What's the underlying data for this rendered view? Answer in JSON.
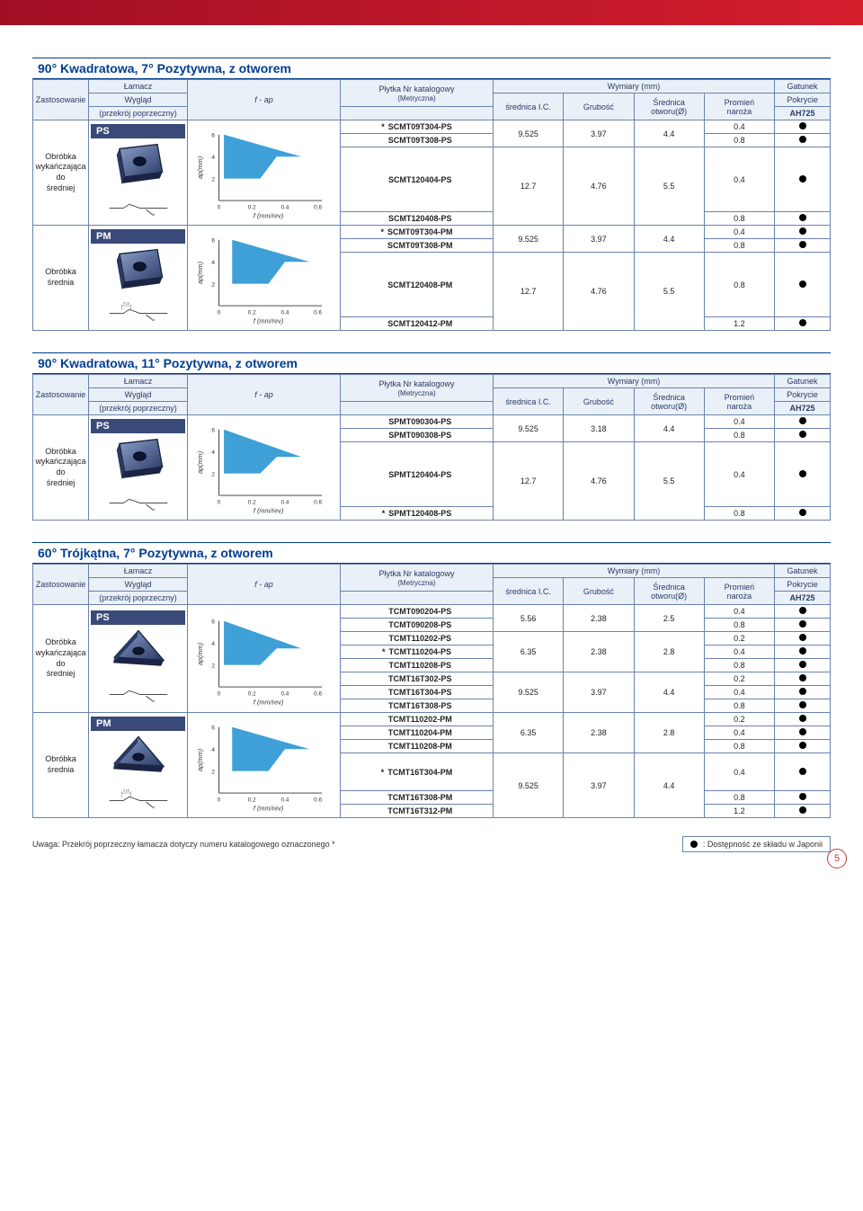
{
  "colors": {
    "brand_blue": "#003e90",
    "border": "#6a83ad",
    "header_bg": "#eaf0f7",
    "chip_bg": "#3a4a78",
    "chart_fill": "#3fa0d8",
    "chart_frame": "#222",
    "insert_dark": "#2a3a66",
    "insert_light": "#8aa0c9",
    "red_grad_start": "#a20f25",
    "red_grad_end": "#d41e2c"
  },
  "headers": {
    "lamacz": "Łamacz",
    "zastosowanie": "Zastosowanie",
    "wyglad": "Wygląd",
    "przekroj": "(przekrój poprzeczny)",
    "fap": "f - ap",
    "plytka": "Płytka Nr katalogowy",
    "metryczna": "(Metryczna)",
    "wymiary": "Wymiary (mm)",
    "srednica_ic": "średnica I.C.",
    "grubosc": "Grubość",
    "srednica_otw": "Średnica",
    "otworu": "otworu(Ø)",
    "promien": "Promień",
    "naroza": "naroża",
    "gatunek": "Gatunek",
    "pokrycie": "Pokrycie",
    "ah725": "AH725"
  },
  "chart": {
    "x_ticks": [
      "0",
      "0.2",
      "0.4",
      "0.6"
    ],
    "y_ticks": [
      "2",
      "4",
      "6"
    ],
    "x_label": "f (mm/rev)",
    "y_label": "ap(mm)"
  },
  "sections": [
    {
      "title": "90° Kwadratowa, 7° Pozytywna, z otworem",
      "groups": [
        {
          "chip": "PS",
          "app": "Obróbka wykańczająca do średniej",
          "shape": "square",
          "profile": "plain",
          "chart_poly": "0.03,6 0.03,2 0.25,2 0.35,4 0.5,4",
          "rows": [
            {
              "star": true,
              "cat": "SCMT09T304-PS",
              "ic": "9.525",
              "th": "3.97",
              "bore": "4.4",
              "r": "0.4",
              "ah": true,
              "span": 2
            },
            {
              "star": false,
              "cat": "SCMT09T308-PS",
              "r": "0.8",
              "ah": true
            },
            {
              "star": false,
              "cat": "SCMT120404-PS",
              "ic": "12.7",
              "th": "4.76",
              "bore": "5.5",
              "r": "0.4",
              "ah": true,
              "span": 2
            },
            {
              "star": false,
              "cat": "SCMT120408-PS",
              "r": "0.8",
              "ah": true
            }
          ]
        },
        {
          "chip": "PM",
          "app": "Obróbka średnia",
          "shape": "square",
          "profile": "dim",
          "chart_poly": "0.08,6 0.08,2 0.3,2 0.4,4 0.55,4",
          "rows": [
            {
              "star": true,
              "cat": "SCMT09T304-PM",
              "ic": "9.525",
              "th": "3.97",
              "bore": "4.4",
              "r": "0.4",
              "ah": true,
              "span": 2
            },
            {
              "star": false,
              "cat": "SCMT09T308-PM",
              "r": "0.8",
              "ah": true
            },
            {
              "star": false,
              "cat": "SCMT120408-PM",
              "ic": "12.7",
              "th": "4.76",
              "bore": "5.5",
              "r": "0.8",
              "ah": true,
              "span": 2
            },
            {
              "star": false,
              "cat": "SCMT120412-PM",
              "r": "1.2",
              "ah": true
            }
          ]
        }
      ]
    },
    {
      "title": "90° Kwadratowa, 11° Pozytywna, z otworem",
      "groups": [
        {
          "chip": "PS",
          "app": "Obróbka wykańczająca do średniej",
          "shape": "square",
          "profile": "plain",
          "chart_poly": "0.03,6 0.03,2 0.25,2 0.35,3.5 0.5,3.5",
          "rows": [
            {
              "star": false,
              "cat": "SPMT090304-PS",
              "ic": "9.525",
              "th": "3.18",
              "bore": "4.4",
              "r": "0.4",
              "ah": true,
              "span": 2
            },
            {
              "star": false,
              "cat": "SPMT090308-PS",
              "r": "0.8",
              "ah": true
            },
            {
              "star": false,
              "cat": "SPMT120404-PS",
              "ic": "12.7",
              "th": "4.76",
              "bore": "5.5",
              "r": "0.4",
              "ah": true,
              "span": 2
            },
            {
              "star": true,
              "cat": "SPMT120408-PS",
              "r": "0.8",
              "ah": true
            }
          ]
        }
      ]
    },
    {
      "title": "60° Trójkątna, 7° Pozytywna, z otworem",
      "groups": [
        {
          "chip": "PS",
          "app": "Obróbka wykańczająca do średniej",
          "shape": "triangle",
          "profile": "plain",
          "chart_poly": "0.03,6 0.03,2 0.25,2 0.35,3.5 0.5,3.5",
          "rows": [
            {
              "star": false,
              "cat": "TCMT090204-PS",
              "ic": "5.56",
              "th": "2.38",
              "bore": "2.5",
              "r": "0.4",
              "ah": true,
              "span": 2
            },
            {
              "star": false,
              "cat": "TCMT090208-PS",
              "r": "0.8",
              "ah": true
            },
            {
              "star": false,
              "cat": "TCMT110202-PS",
              "ic": "6.35",
              "th": "2.38",
              "bore": "2.8",
              "r": "0.2",
              "ah": true,
              "span": 3
            },
            {
              "star": true,
              "cat": "TCMT110204-PS",
              "r": "0.4",
              "ah": true
            },
            {
              "star": false,
              "cat": "TCMT110208-PS",
              "r": "0.8",
              "ah": true
            },
            {
              "star": false,
              "cat": "TCMT16T302-PS",
              "ic": "9.525",
              "th": "3.97",
              "bore": "4.4",
              "r": "0.2",
              "ah": true,
              "span": 3
            },
            {
              "star": false,
              "cat": "TCMT16T304-PS",
              "r": "0.4",
              "ah": true
            },
            {
              "star": false,
              "cat": "TCMT16T308-PS",
              "r": "0.8",
              "ah": true
            }
          ]
        },
        {
          "chip": "PM",
          "app": "Obróbka średnia",
          "shape": "triangle",
          "profile": "dim",
          "chart_poly": "0.08,6 0.08,2 0.3,2 0.4,4 0.55,4",
          "rows": [
            {
              "star": false,
              "cat": "TCMT110202-PM",
              "ic": "6.35",
              "th": "2.38",
              "bore": "2.8",
              "r": "0.2",
              "ah": true,
              "span": 3
            },
            {
              "star": false,
              "cat": "TCMT110204-PM",
              "r": "0.4",
              "ah": true
            },
            {
              "star": false,
              "cat": "TCMT110208-PM",
              "r": "0.8",
              "ah": true
            },
            {
              "star": true,
              "cat": "TCMT16T304-PM",
              "ic": "9.525",
              "th": "3.97",
              "bore": "4.4",
              "r": "0.4",
              "ah": true,
              "span": 3
            },
            {
              "star": false,
              "cat": "TCMT16T308-PM",
              "r": "0.8",
              "ah": true
            },
            {
              "star": false,
              "cat": "TCMT16T312-PM",
              "r": "1.2",
              "ah": true
            }
          ]
        }
      ]
    }
  ],
  "footer": {
    "note": "Uwaga: Przekrój poprzeczny łamacza dotyczy numeru katalogowego oznaczonego *",
    "legend": ": Dostępność ze składu w Japonii",
    "page": "5"
  },
  "profile_dim": "0.15"
}
